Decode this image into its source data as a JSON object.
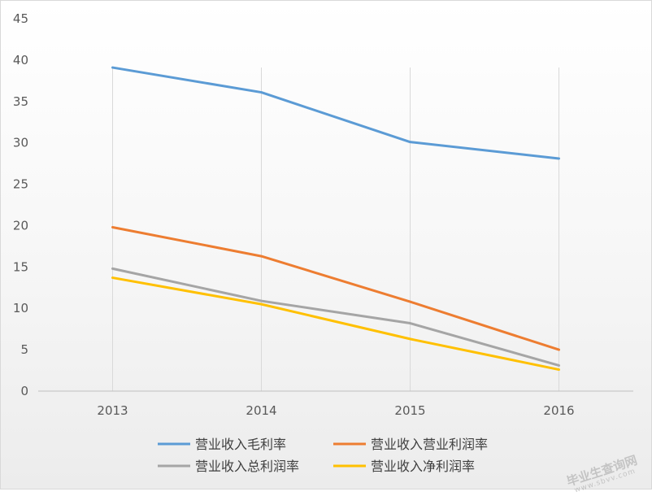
{
  "chart_data": {
    "type": "line",
    "categories": [
      "2013",
      "2014",
      "2015",
      "2016"
    ],
    "series": [
      {
        "name": "营业收入毛利率",
        "color": "#5b9bd5",
        "values": [
          39.1,
          36.1,
          30.1,
          28.1
        ]
      },
      {
        "name": "营业收入营业利润率",
        "color": "#ed7d31",
        "values": [
          19.8,
          16.3,
          10.8,
          5.0
        ]
      },
      {
        "name": "营业收入总利润率",
        "color": "#a5a5a5",
        "values": [
          14.8,
          10.9,
          8.2,
          3.1
        ]
      },
      {
        "name": "营业收入净利润率",
        "color": "#ffc000",
        "values": [
          13.7,
          10.5,
          6.3,
          2.6
        ]
      }
    ],
    "ylim": [
      0,
      45
    ],
    "yticks": [
      0,
      5,
      10,
      15,
      20,
      25,
      30,
      35,
      40,
      45
    ],
    "grid": "vertical lines at categories",
    "legend": "bottom"
  },
  "watermark": {
    "main": "毕业生查询网",
    "sub": "www.sbvv.com"
  }
}
